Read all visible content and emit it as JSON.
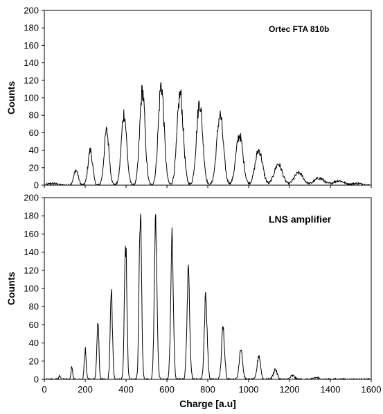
{
  "chart_data": [
    {
      "type": "line",
      "annotation": "Ortec FTA 810b",
      "ylabel": "Counts",
      "xlabel": "",
      "xlim": [
        0,
        1600
      ],
      "ylim": [
        0,
        200
      ],
      "xticks": [
        0,
        200,
        400,
        600,
        800,
        1000,
        1200,
        1400,
        1600
      ],
      "yticks": [
        0,
        20,
        40,
        60,
        80,
        100,
        120,
        140,
        160,
        180,
        200
      ],
      "show_x_tick_labels": false,
      "grid": false,
      "color": "#000000",
      "peaks": [
        {
          "x": 40,
          "y": 2,
          "sigma": 22
        },
        {
          "x": 155,
          "y": 17,
          "sigma": 11
        },
        {
          "x": 225,
          "y": 40,
          "sigma": 11
        },
        {
          "x": 305,
          "y": 62,
          "sigma": 12
        },
        {
          "x": 390,
          "y": 82,
          "sigma": 13
        },
        {
          "x": 480,
          "y": 108,
          "sigma": 13
        },
        {
          "x": 572,
          "y": 115,
          "sigma": 14
        },
        {
          "x": 665,
          "y": 104,
          "sigma": 15
        },
        {
          "x": 760,
          "y": 95,
          "sigma": 15
        },
        {
          "x": 860,
          "y": 80,
          "sigma": 16
        },
        {
          "x": 955,
          "y": 57,
          "sigma": 17
        },
        {
          "x": 1050,
          "y": 40,
          "sigma": 18
        },
        {
          "x": 1145,
          "y": 24,
          "sigma": 20
        },
        {
          "x": 1245,
          "y": 14,
          "sigma": 22
        },
        {
          "x": 1345,
          "y": 8,
          "sigma": 24
        },
        {
          "x": 1440,
          "y": 5,
          "sigma": 26
        },
        {
          "x": 1530,
          "y": 2,
          "sigma": 26
        }
      ]
    },
    {
      "type": "line",
      "annotation": "LNS amplifier",
      "ylabel": "Counts",
      "xlabel": "Charge [a.u]",
      "xlim": [
        0,
        1600
      ],
      "ylim": [
        0,
        200
      ],
      "xticks": [
        0,
        200,
        400,
        600,
        800,
        1000,
        1200,
        1400,
        1600
      ],
      "yticks": [
        0,
        20,
        40,
        60,
        80,
        100,
        120,
        140,
        160,
        180,
        200
      ],
      "show_x_tick_labels": true,
      "grid": false,
      "color": "#000000",
      "peaks": [
        {
          "x": 75,
          "y": 4,
          "sigma": 4
        },
        {
          "x": 135,
          "y": 14,
          "sigma": 4
        },
        {
          "x": 200,
          "y": 33,
          "sigma": 4.5
        },
        {
          "x": 262,
          "y": 61,
          "sigma": 5
        },
        {
          "x": 328,
          "y": 96,
          "sigma": 5.5
        },
        {
          "x": 398,
          "y": 150,
          "sigma": 6
        },
        {
          "x": 470,
          "y": 183,
          "sigma": 6
        },
        {
          "x": 545,
          "y": 175,
          "sigma": 6.5
        },
        {
          "x": 625,
          "y": 152,
          "sigma": 6.5
        },
        {
          "x": 705,
          "y": 115,
          "sigma": 7
        },
        {
          "x": 790,
          "y": 91,
          "sigma": 7
        },
        {
          "x": 875,
          "y": 56,
          "sigma": 7.5
        },
        {
          "x": 962,
          "y": 35,
          "sigma": 8
        },
        {
          "x": 1050,
          "y": 27,
          "sigma": 8
        },
        {
          "x": 1130,
          "y": 11,
          "sigma": 9
        },
        {
          "x": 1215,
          "y": 4,
          "sigma": 10
        },
        {
          "x": 1330,
          "y": 2,
          "sigma": 12
        }
      ]
    }
  ]
}
